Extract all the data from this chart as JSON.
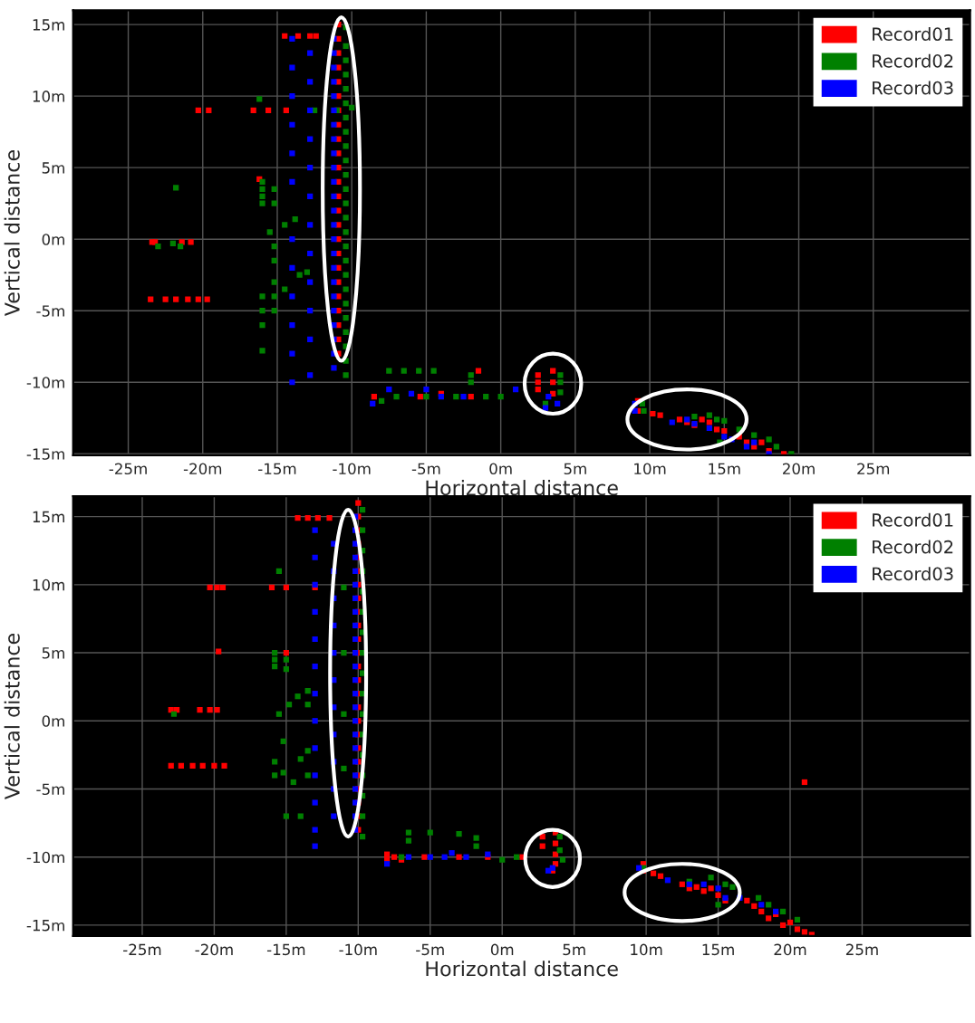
{
  "chart_data": [
    {
      "type": "scatter",
      "xlabel": "Horizontal distance",
      "ylabel": "Vertical distance",
      "xlim": [
        -28.7,
        31.5
      ],
      "ylim": [
        -15.1,
        16
      ],
      "xticks": [
        {
          "value": -25,
          "label": "-25m"
        },
        {
          "value": -20,
          "label": "-20m"
        },
        {
          "value": -15,
          "label": "-15m"
        },
        {
          "value": -10,
          "label": "-10m"
        },
        {
          "value": -5,
          "label": "-5m"
        },
        {
          "value": 0,
          "label": "0m"
        },
        {
          "value": 5,
          "label": "5m"
        },
        {
          "value": 10,
          "label": "10m"
        },
        {
          "value": 15,
          "label": "15m"
        },
        {
          "value": 20,
          "label": "20m"
        },
        {
          "value": 25,
          "label": "25m"
        }
      ],
      "yticks": [
        {
          "value": -15,
          "label": "-15m"
        },
        {
          "value": -10,
          "label": "-10m"
        },
        {
          "value": -5,
          "label": "-5m"
        },
        {
          "value": 0,
          "label": "0m"
        },
        {
          "value": 5,
          "label": "5m"
        },
        {
          "value": 10,
          "label": "10m"
        },
        {
          "value": 15,
          "label": "15m"
        }
      ],
      "grid": true,
      "legend": "top right",
      "marker": "square",
      "series": [
        {
          "name": "Record01",
          "color": "#ff0000",
          "x": [
            -10.9,
            -10.9,
            -10.9,
            -10.9,
            -10.9,
            -10.9,
            -10.9,
            -10.9,
            -10.9,
            -10.9,
            -10.9,
            -10.9,
            -10.9,
            -10.9,
            -10.9,
            -10.9,
            -10.9,
            -10.9,
            -10.9,
            -10.9,
            -10.9,
            -10.9,
            -10.9,
            -10.9,
            -23.5,
            -22.5,
            -21.8,
            -21,
            -20.3,
            -19.7,
            -23.4,
            -23.2,
            -21.4,
            -20.8,
            -20.3,
            -19.6,
            -16.6,
            -15.6,
            -14.4,
            -14.5,
            -13.6,
            -12.8,
            -12.4,
            -16.2,
            -8.5,
            -1.5,
            -2,
            2.5,
            2.5,
            2.5,
            3.5,
            3.5,
            3.5,
            -5.4,
            -4,
            9.2,
            9.2,
            10.2,
            10.7,
            12,
            12.5,
            13,
            13.5,
            14,
            14.5,
            15,
            16,
            16.5,
            17,
            17.5,
            18,
            19
          ],
          "values": [
            -8,
            -7,
            -6,
            -5,
            -4,
            -3,
            -2,
            -1,
            0,
            1,
            2,
            3,
            4,
            5,
            6,
            7,
            8,
            9,
            10,
            11,
            12,
            13,
            14,
            15,
            -4.2,
            -4.2,
            -4.2,
            -4.2,
            -4.2,
            -4.2,
            -0.2,
            -0.2,
            -0.2,
            -0.2,
            9,
            9,
            9,
            9,
            9,
            14.2,
            14.2,
            14.2,
            14.2,
            4.2,
            -11,
            -9.2,
            -11,
            -9.5,
            -10,
            -10.5,
            -9.2,
            -10,
            -10.8,
            -11,
            -10.8,
            -11.3,
            -12,
            -12.2,
            -12.3,
            -12.6,
            -12.8,
            -13,
            -12.6,
            -12.8,
            -13.3,
            -13.4,
            -13.8,
            -14.2,
            -14.5,
            -14.2,
            -14.8,
            -15
          ]
        },
        {
          "name": "Record02",
          "color": "#008000",
          "x": [
            -10.4,
            -10.4,
            -10.4,
            -10.4,
            -10.4,
            -10.4,
            -10.4,
            -10.4,
            -10.4,
            -10.4,
            -10.4,
            -10.4,
            -10.4,
            -10.4,
            -10.4,
            -10.4,
            -10.4,
            -10.4,
            -10.4,
            -10.4,
            -10.4,
            -10.4,
            -10.4,
            -10.4,
            -10.4,
            -12.5,
            -11,
            -10,
            -16,
            -16,
            -16,
            -16,
            -16,
            -16,
            -16,
            -16,
            -16.2,
            -15.2,
            -15.2,
            -15.2,
            -15.2,
            -15.2,
            -15.2,
            -15.2,
            -15.5,
            -14.5,
            -13.8,
            -14.5,
            -13.5,
            -13,
            -21.8,
            -22,
            -23,
            -21.5,
            -7.5,
            -6.5,
            -5.5,
            -4.5,
            -2,
            -2,
            -8,
            -7,
            -5,
            -3,
            -1,
            0,
            4,
            4,
            4,
            3,
            9.5,
            9.6,
            13,
            14,
            14.5,
            15,
            14.7,
            16,
            17,
            18,
            18.5,
            19.5
          ],
          "values": [
            -9.5,
            -8.5,
            -7.5,
            -6.5,
            -5.5,
            -4.5,
            -3.5,
            -2.5,
            -1.5,
            -0.5,
            0.5,
            1.5,
            2.5,
            3.5,
            4.5,
            5.5,
            6.5,
            7.5,
            8.5,
            9.5,
            10.5,
            11.5,
            12.5,
            13.5,
            14.8,
            9,
            9,
            9.2,
            4,
            3.5,
            3,
            2.5,
            -4,
            -5,
            -6,
            -7.8,
            9.8,
            3.5,
            2.5,
            -0.5,
            -1.5,
            -3,
            -4,
            -5,
            0.5,
            1,
            1.4,
            -3.5,
            -2.5,
            -2.3,
            3.6,
            -0.3,
            -0.5,
            -0.5,
            -9.2,
            -9.2,
            -9.2,
            -9.2,
            -9.5,
            -10,
            -11.3,
            -11,
            -11,
            -11,
            -11,
            -11,
            -9.5,
            -10,
            -10.7,
            -11.5,
            -11.5,
            -12,
            -12.4,
            -12.3,
            -12.6,
            -12.7,
            -14.2,
            -13.3,
            -13.7,
            -14,
            -14.5,
            -15
          ]
        },
        {
          "name": "Record03",
          "color": "#0000ff",
          "x": [
            -11.2,
            -11.2,
            -11.2,
            -11.2,
            -11.2,
            -11.2,
            -11.2,
            -11.2,
            -11.2,
            -11.2,
            -11.2,
            -11.2,
            -11.2,
            -11.2,
            -11.2,
            -11.2,
            -11.2,
            -11.2,
            -11.2,
            -11.2,
            -11.2,
            -11.2,
            -11.2,
            -11.2,
            -14,
            -14,
            -14,
            -14,
            -14,
            -14,
            -14,
            -14,
            -14,
            -14,
            -14,
            -14,
            -12.8,
            -12.8,
            -12.8,
            -12.8,
            -12.8,
            -12.8,
            -12.8,
            -12.8,
            -12.8,
            -12.8,
            -12.8,
            -12.8,
            -8.6,
            -7.5,
            -6,
            -5,
            -4,
            -2.5,
            1,
            3,
            3.2,
            3.8,
            9,
            9,
            11.5,
            12.5,
            13,
            14,
            15,
            15.5,
            16.5,
            17,
            18
          ],
          "values": [
            -9,
            -8,
            -7,
            -6,
            -5,
            -4,
            -3,
            -2,
            -1,
            0,
            1,
            2,
            3,
            4,
            5,
            6,
            7,
            8,
            9,
            10,
            11,
            12,
            13,
            14,
            14,
            12,
            10,
            8,
            6,
            4,
            0,
            -2,
            -4,
            -6,
            -8,
            -10,
            13,
            11,
            9,
            7,
            5,
            3,
            1,
            -1,
            -3,
            -5,
            -7,
            -9.5,
            -11.5,
            -10.5,
            -10.8,
            -10.5,
            -11,
            -11,
            -10.5,
            -11.8,
            -11,
            -11.5,
            -11.5,
            -12,
            -12.8,
            -12.6,
            -12.9,
            -13.2,
            -13.8,
            -14,
            -14.5,
            -14.2,
            -15
          ]
        }
      ]
    },
    {
      "type": "scatter",
      "xlabel": "Horizontal distance",
      "ylabel": "Vertical distance",
      "xlim": [
        -29.8,
        32.5
      ],
      "ylim": [
        -15.8,
        16.5
      ],
      "xticks": [
        {
          "value": -25,
          "label": "-25m"
        },
        {
          "value": -20,
          "label": "-20m"
        },
        {
          "value": -15,
          "label": "-15m"
        },
        {
          "value": -10,
          "label": "-10m"
        },
        {
          "value": -5,
          "label": "-5m"
        },
        {
          "value": 0,
          "label": "0m"
        },
        {
          "value": 5,
          "label": "5m"
        },
        {
          "value": 10,
          "label": "10m"
        },
        {
          "value": 15,
          "label": "15m"
        },
        {
          "value": 20,
          "label": "20m"
        },
        {
          "value": 25,
          "label": "25m"
        }
      ],
      "yticks": [
        {
          "value": -15,
          "label": "-15m"
        },
        {
          "value": -10,
          "label": "-10m"
        },
        {
          "value": -5,
          "label": "-5m"
        },
        {
          "value": 0,
          "label": "0m"
        },
        {
          "value": 5,
          "label": "5m"
        },
        {
          "value": 10,
          "label": "10m"
        },
        {
          "value": 15,
          "label": "15m"
        }
      ],
      "grid": true,
      "legend": "top right",
      "marker": "square",
      "series": [
        {
          "name": "Record01",
          "color": "#ff0000",
          "x": [
            -10,
            -10,
            -10,
            -10,
            -10,
            -10,
            -10,
            -10,
            -10,
            -10,
            -10,
            -10,
            -10,
            -10,
            -10,
            -10,
            -10,
            -10,
            -10,
            -10,
            -10,
            -10,
            -10,
            -10,
            -10,
            -23,
            -22.3,
            -21.5,
            -20.8,
            -20,
            -19.3,
            -23,
            -22.6,
            -21,
            -20.3,
            -19.8,
            -20.3,
            -19.8,
            -19.4,
            -16,
            -15,
            -13,
            -19.7,
            -14.2,
            -13.5,
            -12.8,
            -12,
            -15,
            -8,
            -8,
            -7.5,
            -7,
            -5.4,
            -3,
            -1,
            1.4,
            2.8,
            2.8,
            3.7,
            3.7,
            3.7,
            3.7,
            3.5,
            21,
            9.8,
            9.8,
            10.5,
            11,
            12.5,
            13,
            13.5,
            14,
            14.5,
            15,
            15.5,
            17,
            17.5,
            18,
            18.5,
            19,
            19.5,
            20,
            20.5,
            21,
            21.5
          ],
          "values": [
            -8,
            -7,
            -6,
            -5,
            -4,
            -3,
            -2,
            -1,
            0,
            1,
            2,
            3,
            4,
            5,
            6,
            7,
            8,
            9,
            10,
            11,
            12,
            13,
            14,
            15,
            16,
            -3.3,
            -3.3,
            -3.3,
            -3.3,
            -3.3,
            -3.3,
            0.8,
            0.8,
            0.8,
            0.8,
            0.8,
            9.8,
            9.8,
            9.8,
            9.8,
            9.8,
            9.8,
            5.1,
            14.9,
            14.9,
            14.9,
            14.9,
            5,
            -9.8,
            -10.2,
            -10,
            -10.2,
            -10,
            -10,
            -10,
            -10,
            -8.5,
            -9.2,
            -8.2,
            -9,
            -9.8,
            -10.5,
            -11,
            -4.5,
            -10.5,
            -11,
            -11.2,
            -11.4,
            -12,
            -12.3,
            -12.2,
            -12.5,
            -12.3,
            -12.8,
            -13.2,
            -13.2,
            -13.6,
            -14,
            -14.5,
            -14.2,
            -15,
            -14.8,
            -15.3,
            -15.5,
            -15.7
          ]
        },
        {
          "name": "Record02",
          "color": "#008000",
          "x": [
            -9.7,
            -9.7,
            -9.7,
            -9.7,
            -9.7,
            -9.7,
            -9.7,
            -9.7,
            -9.7,
            -9.7,
            -9.7,
            -9.7,
            -9.7,
            -9.7,
            -9.7,
            -9.7,
            -9.7,
            -15.8,
            -15.8,
            -15.8,
            -15.8,
            -15.8,
            -15,
            -15,
            -15.5,
            -14.8,
            -14.2,
            -13.5,
            -13.5,
            -15.2,
            -15.2,
            -14.5,
            -14,
            -13.5,
            -13.5,
            -15,
            -14,
            -15.5,
            -22.8,
            -11,
            -11,
            -11,
            -11,
            -6.5,
            -6.5,
            -5,
            -3,
            -1.8,
            -1.8,
            -7,
            0,
            1,
            4,
            4,
            4.2,
            9.8,
            13,
            14.5,
            15.5,
            16,
            15,
            17.8,
            18.5,
            19.5,
            20.5
          ],
          "values": [
            -8.5,
            -7,
            -5.5,
            -4,
            -2.5,
            -1,
            0.5,
            2,
            3.5,
            5,
            6.5,
            8,
            9.5,
            11,
            12.5,
            14,
            15.5,
            5,
            4.5,
            4,
            -3,
            -4,
            4.5,
            3.8,
            0.5,
            1.2,
            1.8,
            2.2,
            1.2,
            -1.5,
            -3.8,
            -4.5,
            -2.8,
            -2.2,
            -4,
            -7,
            -7,
            11,
            0.5,
            9.8,
            5,
            0.5,
            -3.5,
            -8.2,
            -8.8,
            -8.2,
            -8.3,
            -8.6,
            -9.2,
            -10,
            -10.2,
            -10,
            -8.5,
            -9.5,
            -10.2,
            -10.8,
            -11.8,
            -11.5,
            -12,
            -12.2,
            -13.5,
            -13,
            -13.5,
            -14,
            -14.6
          ]
        },
        {
          "name": "Record03",
          "color": "#0000ff",
          "x": [
            -10.2,
            -10.2,
            -10.2,
            -10.2,
            -10.2,
            -10.2,
            -10.2,
            -10.2,
            -10.2,
            -10.2,
            -10.2,
            -10.2,
            -10.2,
            -10.2,
            -10.2,
            -10.2,
            -10.2,
            -10.2,
            -10.2,
            -10.2,
            -10.2,
            -10.2,
            -10.2,
            -10.2,
            -13,
            -13,
            -13,
            -13,
            -13,
            -13,
            -13,
            -13,
            -13,
            -13,
            -13,
            -13,
            -13,
            -11.7,
            -11.7,
            -11.7,
            -11.7,
            -11.7,
            -11.7,
            -11.7,
            -11.7,
            -11.7,
            -11.7,
            -11.7,
            -8,
            -6.5,
            -5,
            -4,
            -3.5,
            -2.5,
            3.5,
            3.2,
            -1,
            9.5,
            11.5,
            13,
            14,
            15,
            15.5,
            16.5,
            18,
            19
          ],
          "values": [
            -8,
            -7,
            -6,
            -5,
            -4,
            -3,
            -2,
            -1,
            0,
            1,
            2,
            3,
            4,
            5,
            6,
            7,
            8,
            9,
            10,
            11,
            12,
            13,
            14,
            15,
            14,
            12,
            10,
            8,
            6,
            4,
            2,
            0,
            -2,
            -4,
            -6,
            -8,
            -9.2,
            13,
            11,
            9,
            7,
            5,
            3,
            1,
            -1,
            -3,
            -5,
            -7,
            -10.5,
            -10,
            -10,
            -10,
            -9.7,
            -10,
            -10.8,
            -11,
            -9.8,
            -10.8,
            -11.7,
            -12,
            -12,
            -12.3,
            -13,
            -13,
            -13.5,
            -14
          ]
        }
      ]
    }
  ]
}
